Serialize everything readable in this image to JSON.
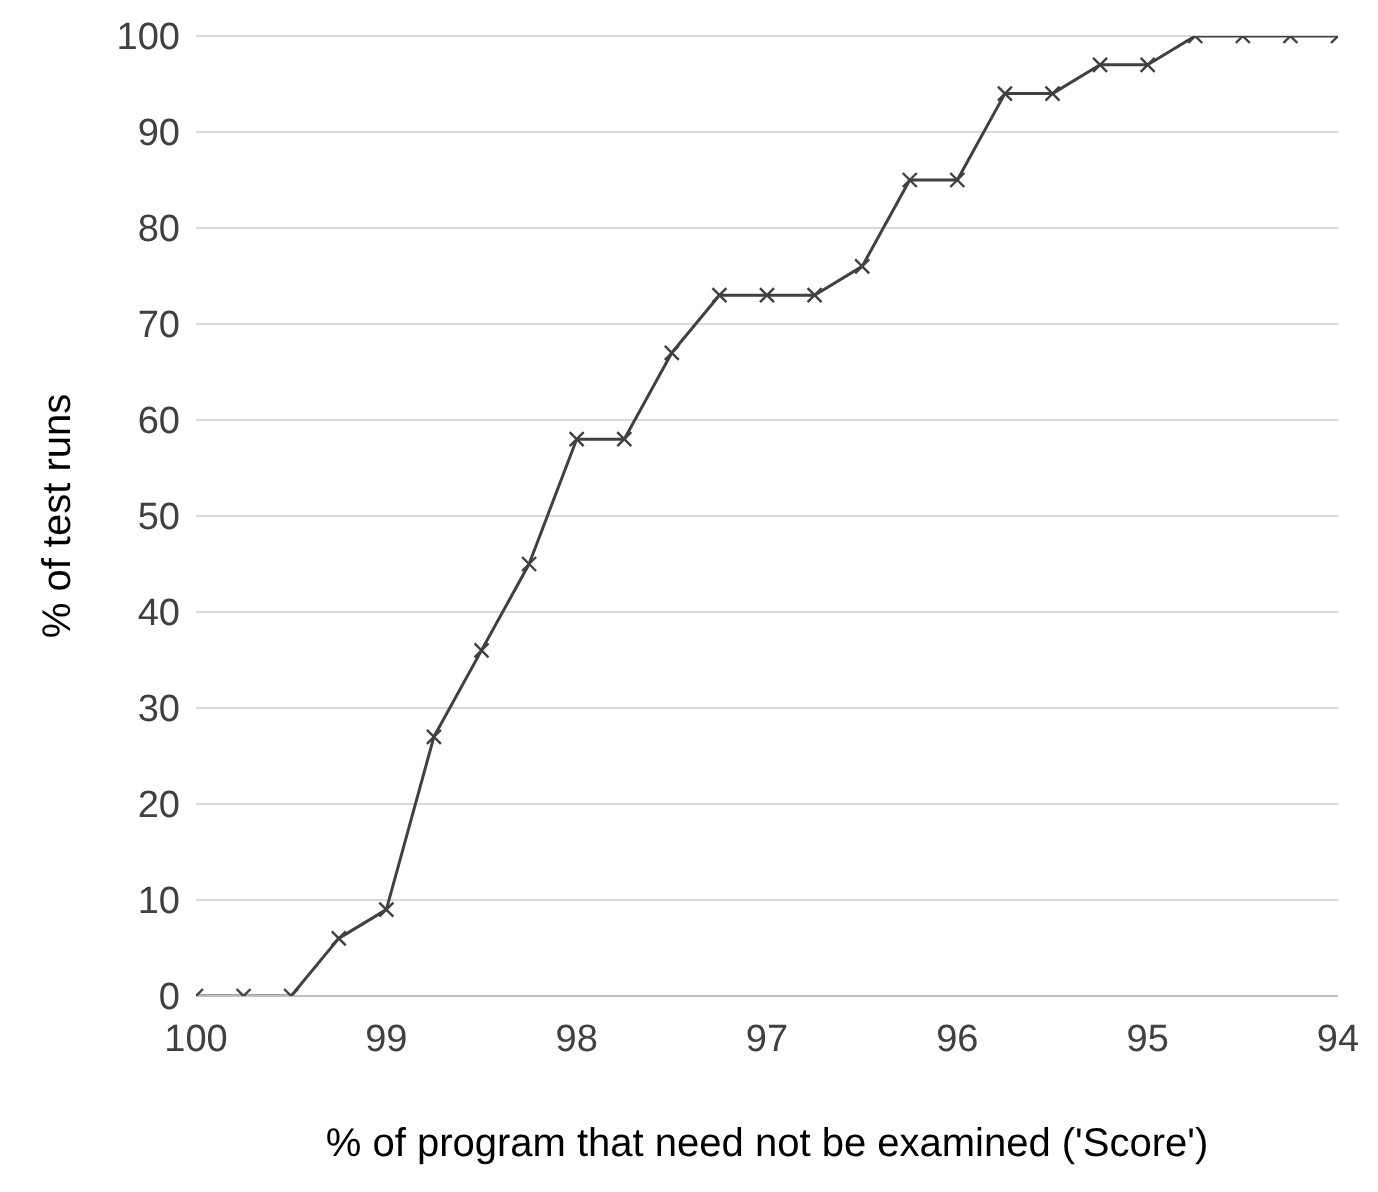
{
  "chart_data": {
    "type": "line",
    "xlabel": "% of program that need not be examined ('Score')",
    "ylabel": "% of test runs",
    "x": [
      100,
      99.75,
      99.5,
      99.25,
      99,
      98.75,
      98.5,
      98.25,
      98,
      97.75,
      97.5,
      97.25,
      97,
      96.75,
      96.5,
      96.25,
      96,
      95.75,
      95.5,
      95.25,
      95,
      94.75,
      94.5,
      94.25,
      94
    ],
    "series": [
      {
        "color": "#404040",
        "values": [
          0,
          0,
          0,
          6,
          9,
          27,
          36,
          45,
          58,
          58,
          67,
          73,
          73,
          73,
          76,
          85,
          85,
          94,
          94,
          97,
          97,
          100,
          100,
          100,
          100
        ]
      }
    ],
    "xlim": [
      100,
      94
    ],
    "xticks": [
      100,
      99,
      98,
      97,
      96,
      95,
      94
    ],
    "ylim": [
      0,
      100
    ],
    "yticks": [
      0,
      10,
      20,
      30,
      40,
      50,
      60,
      70,
      80,
      90,
      100
    ],
    "grid": "y",
    "legend": false,
    "marker": "cross",
    "line_style": "solid"
  }
}
